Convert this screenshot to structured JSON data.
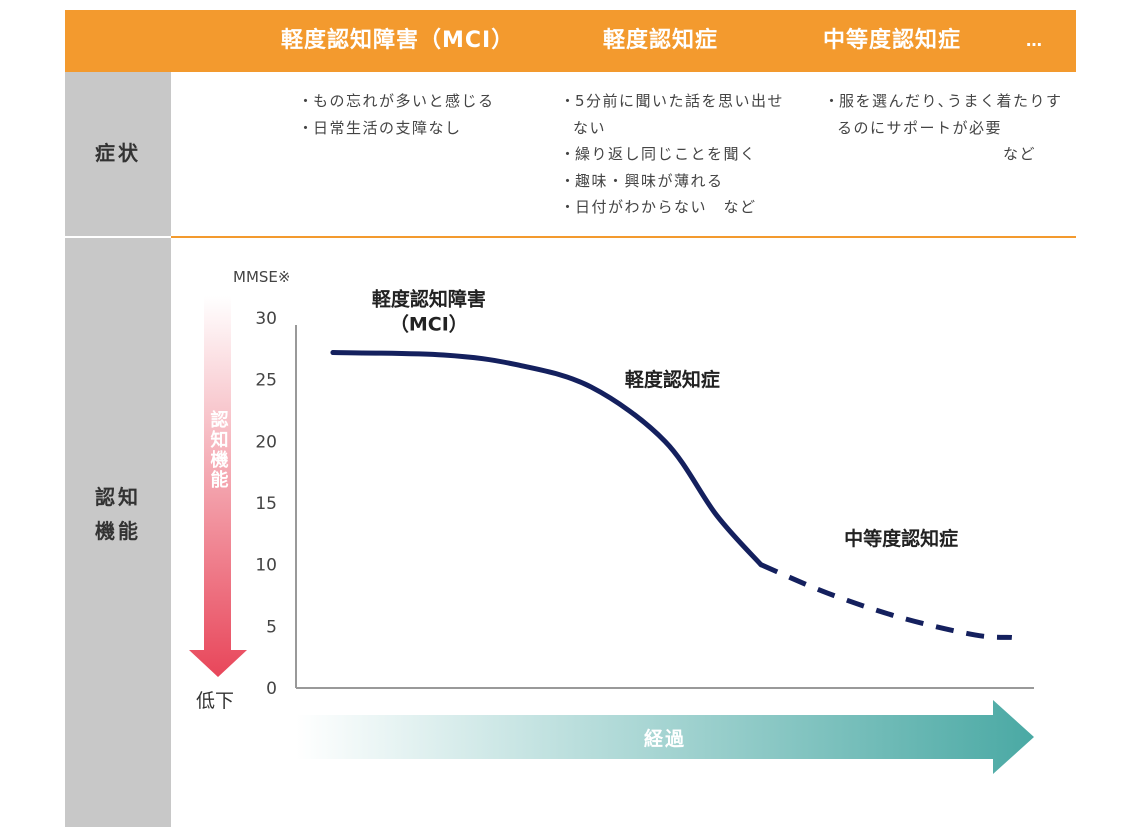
{
  "header": {
    "columns": [
      "軽度認知障害（MCI）",
      "軽度認知症",
      "中等度認知症"
    ],
    "more": "…"
  },
  "rows": {
    "symptoms_label": "症状",
    "function_label_line1": "認知",
    "function_label_line2": "機能"
  },
  "symptoms": {
    "mci": [
      "もの忘れが多いと感じる",
      "日常生活の支障なし"
    ],
    "mild": [
      "5分前に聞いた話を思い出せない",
      "繰り返し同じことを聞く",
      "趣味・興味が薄れる",
      "日付がわからない　など"
    ],
    "moderate": [
      "服を選んだり､うまく着たりするのにサポートが必要",
      "など"
    ]
  },
  "chart_data": {
    "type": "line",
    "y_axis_title": "MMSE※",
    "y_arrow_label": "認知機能",
    "y_low_label": "低下",
    "x_arrow_label": "経過",
    "ylim": [
      0,
      30
    ],
    "yticks": [
      30,
      25,
      20,
      15,
      10,
      5,
      0
    ],
    "grid": false,
    "colors": {
      "curve": "#14205e",
      "arrow_down": "#e8465a",
      "arrow_right": "#4aa9a4"
    },
    "series": [
      {
        "style": "solid",
        "points": [
          [
            0.05,
            27.2
          ],
          [
            0.2,
            27.0
          ],
          [
            0.3,
            26.2
          ],
          [
            0.4,
            24.4
          ],
          [
            0.5,
            20.0
          ],
          [
            0.57,
            14.0
          ],
          [
            0.63,
            10.0
          ]
        ]
      },
      {
        "style": "dashed",
        "points": [
          [
            0.63,
            10.0
          ],
          [
            0.72,
            7.7
          ],
          [
            0.82,
            5.7
          ],
          [
            0.92,
            4.3
          ],
          [
            0.97,
            4.1
          ]
        ]
      }
    ],
    "annotations": [
      {
        "text": "軽度認知障害",
        "x": 0.18,
        "y": 31.0
      },
      {
        "text": "（MCI）",
        "x": 0.18,
        "y": 29.0
      },
      {
        "text": "軽度認知症",
        "x": 0.51,
        "y": 24.5
      },
      {
        "text": "中等度認知症",
        "x": 0.82,
        "y": 11.6
      }
    ]
  }
}
